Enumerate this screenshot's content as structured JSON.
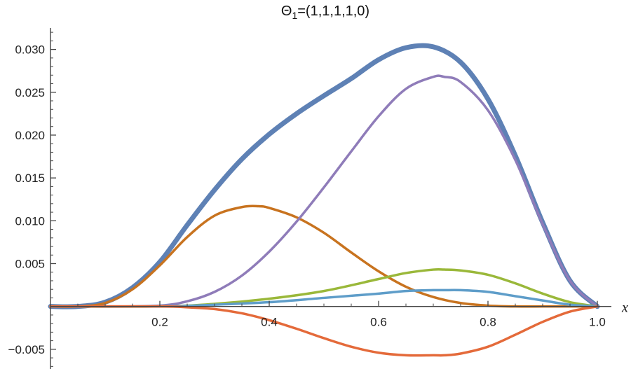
{
  "chart_data": {
    "type": "line",
    "title": "Θ",
    "title_subscript": "1",
    "title_suffix": "=(1,1,1,1,0)",
    "xlabel": "x",
    "ylabel": "",
    "xlim": [
      0.0,
      1.0
    ],
    "ylim": [
      -0.0073,
      0.0325
    ],
    "x_axis_at_y": 0,
    "x_ticks": [
      0.2,
      0.4,
      0.6,
      0.8,
      1.0
    ],
    "x_tick_labels": [
      "0.2",
      "0.4",
      "0.6",
      "0.8",
      "1.0"
    ],
    "y_ticks": [
      -0.005,
      0.005,
      0.01,
      0.015,
      0.02,
      0.025,
      0.03
    ],
    "y_tick_labels": [
      "−0.005",
      "0.005",
      "0.010",
      "0.015",
      "0.020",
      "0.025",
      "0.030"
    ],
    "grid": false,
    "legend": "none",
    "series": [
      {
        "color": "#5E81B5",
        "width": 7,
        "x": [
          0.0,
          0.05,
          0.1,
          0.15,
          0.2,
          0.25,
          0.3,
          0.35,
          0.4,
          0.45,
          0.5,
          0.55,
          0.6,
          0.65,
          0.7,
          0.75,
          0.8,
          0.85,
          0.9,
          0.95,
          1.0
        ],
        "y": [
          0.0,
          0.0,
          0.0005,
          0.0022,
          0.0052,
          0.0095,
          0.0136,
          0.0172,
          0.0201,
          0.0225,
          0.0246,
          0.0266,
          0.0288,
          0.0302,
          0.0303,
          0.0285,
          0.0242,
          0.0176,
          0.0098,
          0.003,
          0.0
        ]
      },
      {
        "color": "#C8731F",
        "width": 3.5,
        "x": [
          0.0,
          0.05,
          0.1,
          0.15,
          0.2,
          0.25,
          0.3,
          0.35,
          0.38,
          0.4,
          0.45,
          0.5,
          0.55,
          0.6,
          0.65,
          0.7,
          0.75,
          0.8,
          0.85,
          0.9,
          0.95,
          1.0
        ],
        "y": [
          0.0,
          0.0,
          0.0004,
          0.002,
          0.0048,
          0.0081,
          0.0106,
          0.0116,
          0.0117,
          0.0115,
          0.0104,
          0.0086,
          0.0063,
          0.0041,
          0.0023,
          0.0011,
          0.0004,
          0.0001,
          0.0,
          0.0,
          0.0,
          0.0
        ]
      },
      {
        "color": "#8F7CB9",
        "width": 3.5,
        "x": [
          0.0,
          0.1,
          0.2,
          0.25,
          0.3,
          0.35,
          0.4,
          0.45,
          0.5,
          0.55,
          0.6,
          0.65,
          0.7,
          0.72,
          0.75,
          0.8,
          0.85,
          0.9,
          0.95,
          1.0
        ],
        "y": [
          0.0,
          0.0,
          0.0001,
          0.0006,
          0.0017,
          0.0036,
          0.0064,
          0.0099,
          0.0139,
          0.0181,
          0.0222,
          0.0254,
          0.0268,
          0.0268,
          0.0262,
          0.0229,
          0.0171,
          0.0096,
          0.003,
          0.0
        ]
      },
      {
        "color": "#9AB83A",
        "width": 3.5,
        "x": [
          0.0,
          0.2,
          0.3,
          0.4,
          0.5,
          0.6,
          0.65,
          0.7,
          0.72,
          0.75,
          0.8,
          0.85,
          0.9,
          0.95,
          1.0
        ],
        "y": [
          0.0,
          0.0,
          0.0003,
          0.0009,
          0.0018,
          0.0032,
          0.0039,
          0.0043,
          0.0043,
          0.0042,
          0.0037,
          0.0027,
          0.0015,
          0.0005,
          0.0
        ]
      },
      {
        "color": "#5E9DC9",
        "width": 3.5,
        "x": [
          0.0,
          0.2,
          0.3,
          0.4,
          0.5,
          0.6,
          0.65,
          0.7,
          0.72,
          0.75,
          0.8,
          0.85,
          0.9,
          0.95,
          1.0
        ],
        "y": [
          0.0,
          0.0,
          0.0002,
          0.0005,
          0.001,
          0.0015,
          0.0018,
          0.0019,
          0.0019,
          0.0019,
          0.0017,
          0.0012,
          0.0007,
          0.0002,
          0.0
        ]
      },
      {
        "color": "#E46A3A",
        "width": 3.5,
        "x": [
          0.0,
          0.2,
          0.25,
          0.3,
          0.35,
          0.4,
          0.45,
          0.5,
          0.55,
          0.6,
          0.65,
          0.7,
          0.72,
          0.75,
          0.8,
          0.85,
          0.9,
          0.95,
          1.0
        ],
        "y": [
          0.0,
          0.0,
          -0.0001,
          -0.0003,
          -0.0008,
          -0.0016,
          -0.0026,
          -0.0037,
          -0.0047,
          -0.0054,
          -0.0057,
          -0.0057,
          -0.0057,
          -0.0055,
          -0.0047,
          -0.0033,
          -0.0018,
          -0.0006,
          0.0
        ]
      }
    ]
  }
}
